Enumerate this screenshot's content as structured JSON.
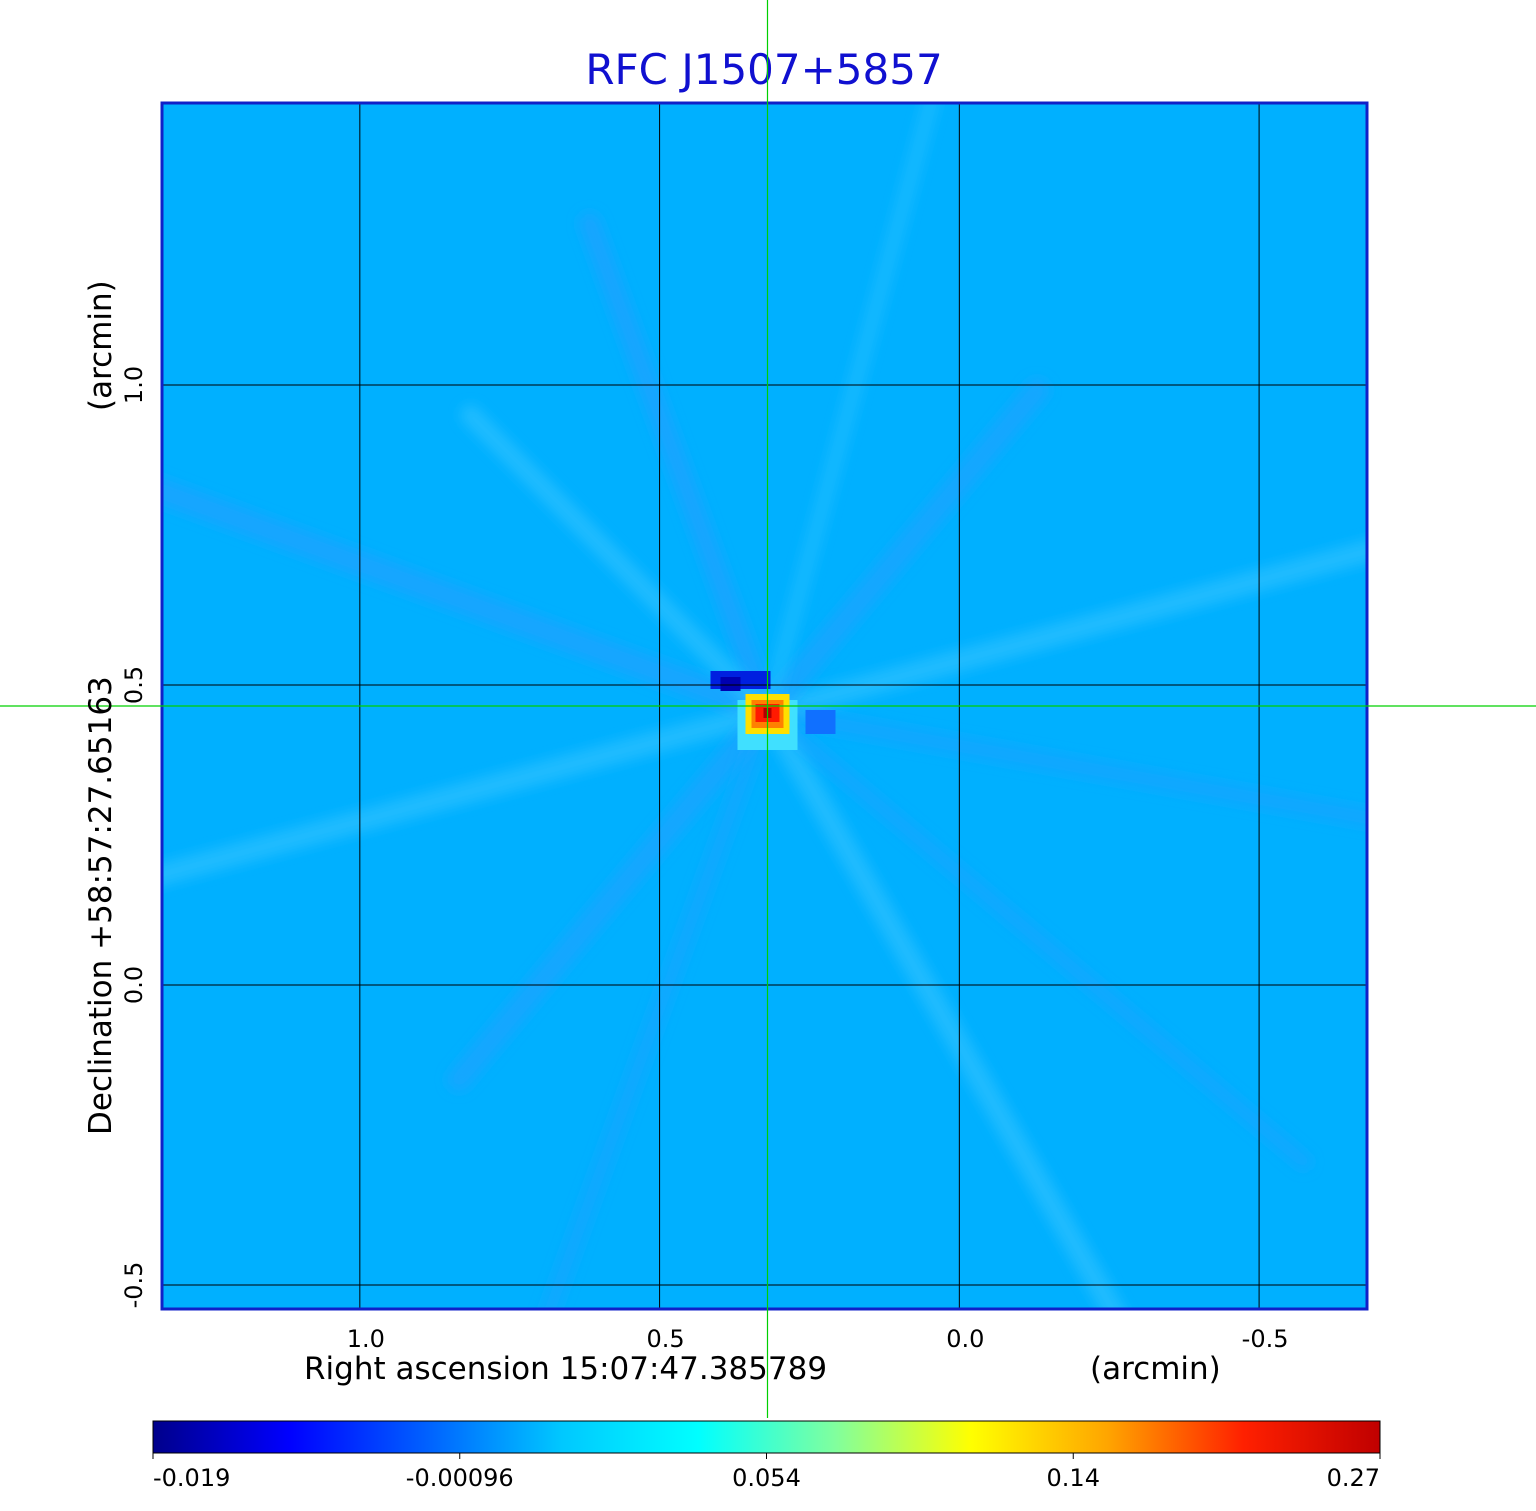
{
  "chart_data": {
    "type": "heatmap",
    "title": "RFC J1507+5857",
    "xlabel": "Right ascension  15:07:47.385789",
    "xunit": "(arcmin)",
    "ylabel": "Declination  +58:57:27.65163",
    "yunit": "(arcmin)",
    "x_ticks": [
      1.0,
      0.5,
      0.0,
      -0.5
    ],
    "x_tick_labels": [
      "1.0",
      "0.5",
      "0.0",
      "-0.5"
    ],
    "y_ticks": [
      1.0,
      0.5,
      0.0,
      -0.5
    ],
    "y_tick_labels": [
      "1.0",
      "0.5",
      "0.0",
      "-0.5"
    ],
    "xlim": [
      1.33,
      -0.68
    ],
    "ylim": [
      -0.54,
      1.47
    ],
    "grid": true,
    "crosshair": {
      "x": 0.32,
      "y": 0.465
    },
    "colorbar": {
      "min": -0.019,
      "max": 0.27,
      "ticks": [
        -0.019,
        -0.00096,
        0.054,
        0.14,
        0.27
      ],
      "tick_labels": [
        "-0.019",
        "-0.00096",
        "0.054",
        "0.14",
        "0.27"
      ],
      "colormap": [
        "#00008b",
        "#0000ff",
        "#0060ff",
        "#00c8ff",
        "#00ffff",
        "#80ff9e",
        "#ffff00",
        "#ffa500",
        "#ff2000",
        "#c00000"
      ]
    },
    "background_color": "#00b0ff",
    "peak": {
      "x": 0.32,
      "y": 0.455,
      "value": 0.27
    },
    "negative_feature": {
      "x": 0.345,
      "y": 0.5,
      "value": -0.019
    },
    "colors": {
      "title": "#1010d0",
      "frame": "#1020c8",
      "grid": "#000000",
      "crosshair": "#00d000"
    }
  }
}
